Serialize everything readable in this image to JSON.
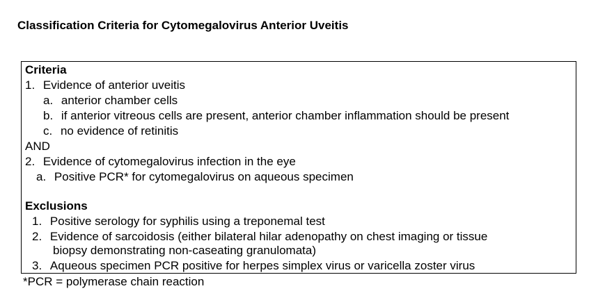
{
  "document": {
    "title": "Classification Criteria for Cytomegalovirus Anterior Uveitis",
    "criteria": {
      "heading": "Criteria",
      "item1": {
        "num": "1.",
        "text": "Evidence of anterior uveitis",
        "subitems": [
          {
            "letter": "a.",
            "text": "anterior chamber cells"
          },
          {
            "letter": "b.",
            "text": "if anterior vitreous cells are present, anterior chamber inflammation should be present"
          },
          {
            "letter": "c.",
            "text": "no evidence of retinitis"
          }
        ]
      },
      "conjunction": "AND",
      "item2": {
        "num": "2.",
        "text": "Evidence of cytomegalovirus infection in the eye",
        "subitems": [
          {
            "letter": "a.",
            "text": "Positive PCR* for cytomegalovirus on aqueous specimen"
          }
        ]
      }
    },
    "exclusions": {
      "heading": "Exclusions",
      "items": [
        {
          "num": "1.",
          "text": "Positive serology for syphilis using a treponemal test"
        },
        {
          "num": "2.",
          "text": "Evidence of sarcoidosis (either bilateral hilar adenopathy on chest imaging or tissue",
          "continuation": "biopsy demonstrating non-caseating granulomata)"
        },
        {
          "num": "3.",
          "text": "Aqueous specimen PCR positive for herpes simplex virus or varicella zoster virus"
        }
      ]
    },
    "footnote": "*PCR = polymerase chain reaction"
  }
}
